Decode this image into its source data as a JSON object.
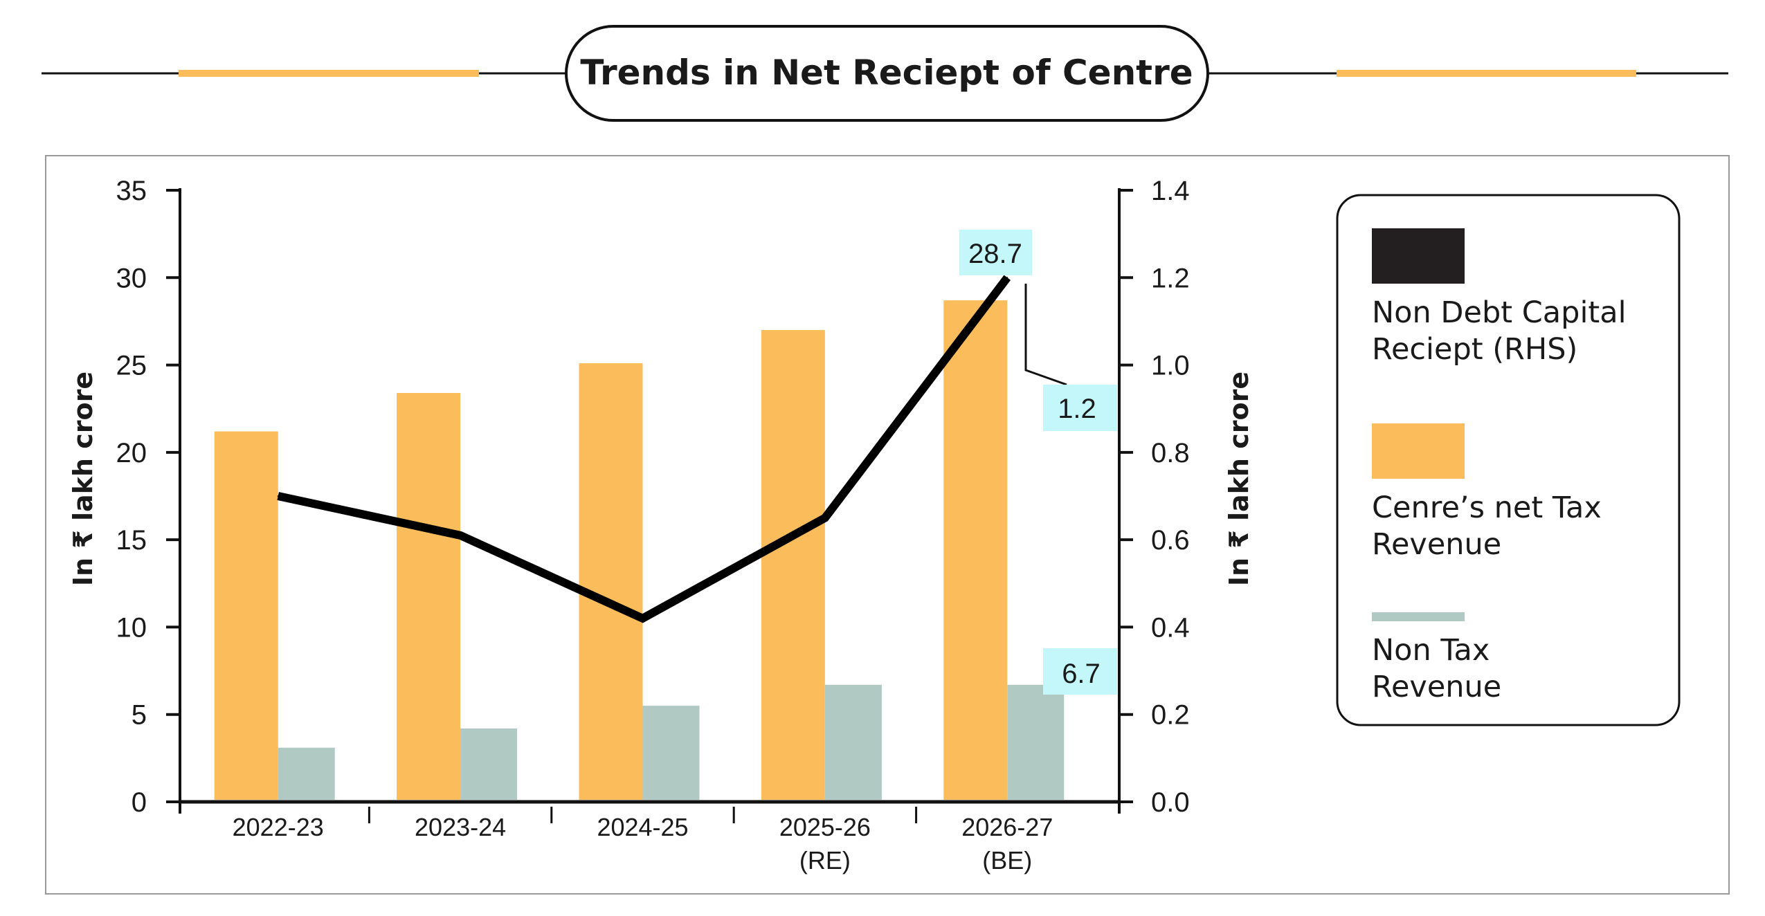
{
  "chart_data": {
    "type": "bar",
    "title": "Trends in Net Reciept of Centre",
    "categories": [
      [
        "2022-23"
      ],
      [
        "2023-24"
      ],
      [
        "2024-25"
      ],
      [
        "2025-26",
        "(RE)"
      ],
      [
        "2026-27",
        "(BE)"
      ]
    ],
    "series": [
      {
        "name": "Cenre’s net Tax Revenue",
        "type": "bar",
        "axis": "left",
        "color": "#FBBD5B",
        "values": [
          21.2,
          23.4,
          25.1,
          27.0,
          28.7
        ]
      },
      {
        "name": "Non Tax Revenue",
        "type": "bar",
        "axis": "left",
        "color": "#B1C9C3",
        "values": [
          3.1,
          4.2,
          5.5,
          6.7,
          6.7
        ]
      },
      {
        "name": "Non Debt Capital Reciept (RHS)",
        "type": "line",
        "axis": "right",
        "color": "#000000",
        "values": [
          0.7,
          0.61,
          0.42,
          0.65,
          1.2
        ]
      }
    ],
    "legend_lines": [
      [
        "Non Debt Capital",
        "Reciept (RHS)"
      ],
      [
        "Cenre’s net Tax",
        "Revenue"
      ],
      [
        "Non Tax",
        "Revenue"
      ]
    ],
    "ylabel": "In ₹ lakh crore",
    "y2label": "In ₹ lakh crore",
    "ylim": [
      0,
      35
    ],
    "y2lim": [
      0,
      1.4
    ],
    "yticks": [
      "0",
      "5",
      "10",
      "15",
      "20",
      "25",
      "30",
      "35"
    ],
    "y2ticks": [
      "0.0",
      "0.2",
      "0.4",
      "0.6",
      "0.8",
      "1.0",
      "1.2",
      "1.4"
    ],
    "annotations": [
      "28.7",
      "1.2",
      "6.7"
    ],
    "legend_position": "right",
    "grid": false,
    "accent_color": "#FBBD5B",
    "callout_color": "#C3F7FA"
  }
}
